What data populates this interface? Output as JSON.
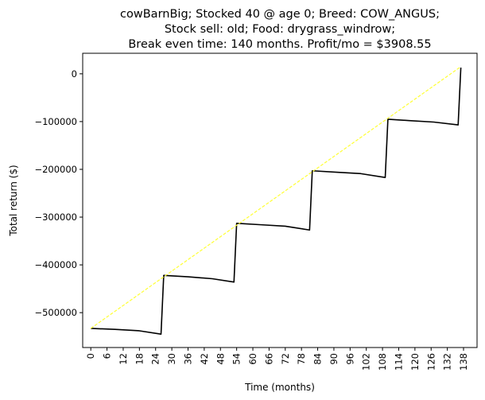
{
  "chart_data": {
    "type": "line",
    "title_lines": [
      "cowBarnBig; Stocked 40 @ age 0; Breed: COW_ANGUS;",
      "Stock sell: old; Food: drygrass_windrow;",
      "Break even time: 140 months. Profit/mo = $3908.55"
    ],
    "xlabel": "Time (months)",
    "ylabel": "Total return ($)",
    "xlim": [
      -3,
      143
    ],
    "ylim": [
      -573000,
      43000
    ],
    "x_ticks": [
      0,
      6,
      12,
      18,
      24,
      30,
      36,
      42,
      48,
      54,
      60,
      66,
      72,
      78,
      84,
      90,
      96,
      102,
      108,
      114,
      120,
      126,
      132,
      138
    ],
    "y_ticks": [
      0,
      -100000,
      -200000,
      -300000,
      -400000,
      -500000
    ],
    "y_tick_labels": [
      "0",
      "−100000",
      "−200000",
      "−300000",
      "−400000",
      "−500000"
    ],
    "grid": false,
    "series": [
      {
        "color": "#000000",
        "style": "solid",
        "points": [
          [
            0,
            -533000
          ],
          [
            9,
            -535000
          ],
          [
            18,
            -538000
          ],
          [
            26,
            -545000
          ],
          [
            27,
            -422000
          ],
          [
            36,
            -425000
          ],
          [
            45,
            -429000
          ],
          [
            53,
            -436000
          ],
          [
            54,
            -313000
          ],
          [
            63,
            -316000
          ],
          [
            72,
            -319000
          ],
          [
            81,
            -327000
          ],
          [
            82,
            -203000
          ],
          [
            91,
            -206000
          ],
          [
            100,
            -209000
          ],
          [
            109,
            -217000
          ],
          [
            110,
            -95000
          ],
          [
            118,
            -98000
          ],
          [
            127,
            -101000
          ],
          [
            136,
            -107000
          ],
          [
            137,
            13000
          ]
        ]
      },
      {
        "color": "#ffff33",
        "style": "dashed",
        "points": [
          [
            0,
            -533000
          ],
          [
            137,
            15000
          ]
        ]
      }
    ]
  }
}
